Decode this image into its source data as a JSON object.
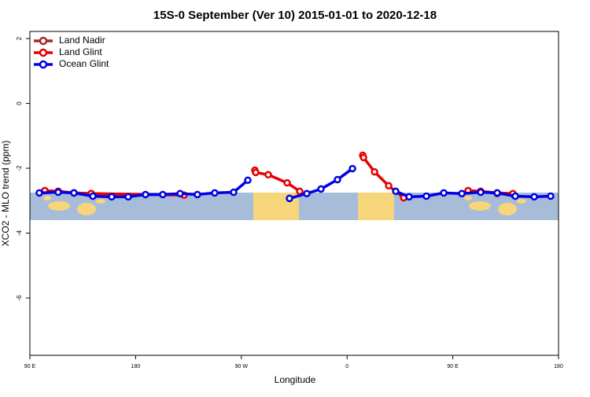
{
  "chart_data": {
    "type": "line",
    "title": "15S-0 September (Ver 10)   2015-01-01 to 2020-12-18",
    "x_label": "Longitude",
    "y_label": "XCO2 - MLO trend (ppm)",
    "xlim": [
      90,
      540
    ],
    "xticks": [
      {
        "value": 90,
        "label": "90 E"
      },
      {
        "value": 180,
        "label": "180"
      },
      {
        "value": 270,
        "label": "90 W"
      },
      {
        "value": 360,
        "label": "0"
      },
      {
        "value": 450,
        "label": "90 E"
      },
      {
        "value": 540,
        "label": "180"
      }
    ],
    "ylim": [
      -7.77,
      2.22
    ],
    "yticks": [
      2,
      0,
      -2,
      -4,
      -6
    ],
    "legend": "top-left",
    "series": [
      {
        "name": "Land Nadir",
        "color": "#a52a2a",
        "x": [
          102.7,
          114.1,
          127.5,
          142.2,
          null,
          463.0,
          473.7,
          487.8,
          501.2
        ],
        "values": [
          -2.69,
          -2.71,
          -2.76,
          -2.78,
          null,
          -2.69,
          -2.71,
          -2.78,
          -2.8
        ]
      },
      {
        "name": "Land Glint",
        "color": "#e60000",
        "x": [
          102.7,
          114.1,
          127.5,
          142.2,
          221.3,
          null,
          281.5,
          282.2,
          292.9,
          309.0,
          319.7,
          null,
          373.3,
          374.0,
          383.4,
          395.4,
          408.2,
          null,
          463.0,
          473.7,
          487.8,
          501.2
        ],
        "values": [
          -2.69,
          -2.71,
          -2.76,
          -2.78,
          -2.83,
          null,
          -2.06,
          -2.13,
          -2.2,
          -2.45,
          -2.71,
          null,
          -1.6,
          -1.67,
          -2.11,
          -2.54,
          -2.91,
          null,
          -2.69,
          -2.71,
          -2.76,
          -2.78
        ]
      },
      {
        "name": "Ocean Glint",
        "color": "#0000e6",
        "x": [
          98.0,
          114.1,
          127.5,
          143.6,
          159.6,
          173.7,
          188.4,
          203.1,
          217.9,
          232.6,
          247.3,
          263.4,
          275.5,
          null,
          311.0,
          325.7,
          337.8,
          351.8,
          364.6,
          null,
          401.4,
          412.8,
          427.5,
          442.3,
          457.7,
          473.7,
          487.8,
          503.2,
          519.3,
          533.3
        ],
        "values": [
          -2.76,
          -2.74,
          -2.76,
          -2.86,
          -2.88,
          -2.88,
          -2.81,
          -2.81,
          -2.78,
          -2.81,
          -2.76,
          -2.74,
          -2.37,
          null,
          -2.93,
          -2.78,
          -2.64,
          -2.35,
          -2.01,
          null,
          -2.71,
          -2.88,
          -2.86,
          -2.76,
          -2.78,
          -2.74,
          -2.76,
          -2.86,
          -2.88,
          -2.86
        ]
      }
    ]
  }
}
